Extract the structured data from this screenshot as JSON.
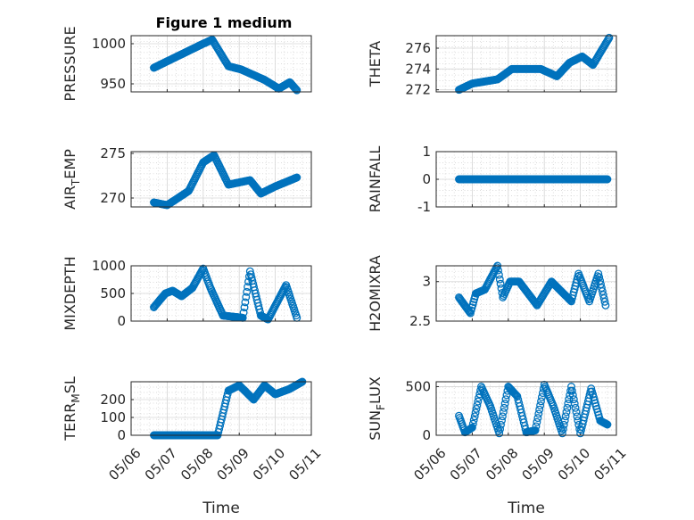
{
  "figure": {
    "title": "Figure 1 medium",
    "xlabel": "Time",
    "xticks": [
      "05/06",
      "05/07",
      "05/08",
      "05/09",
      "05/10",
      "05/11"
    ]
  },
  "chart_data": [
    {
      "type": "scatter",
      "ylabel": "PRESSURE",
      "xlim": [
        0,
        5
      ],
      "ylim": [
        940,
        1010
      ],
      "yticks": [
        "950",
        "1000"
      ],
      "ytick_values": [
        950,
        1000
      ],
      "x": [
        0.63,
        2.0,
        2.25,
        2.7,
        3.05,
        3.7,
        4.1,
        4.4,
        4.6
      ],
      "y": [
        970,
        1000,
        1005,
        972,
        968,
        955,
        944,
        952,
        942
      ]
    },
    {
      "type": "scatter",
      "ylabel": "THETA",
      "xlim": [
        0,
        5
      ],
      "ylim": [
        271.8,
        277.2
      ],
      "yticks": [
        "272",
        "274",
        "276"
      ],
      "ytick_values": [
        272,
        274,
        276
      ],
      "x": [
        0.63,
        1.0,
        1.7,
        2.1,
        2.9,
        3.35,
        3.7,
        4.05,
        4.35,
        4.8
      ],
      "y": [
        272.0,
        272.6,
        273.0,
        274.0,
        274.0,
        273.3,
        274.6,
        275.2,
        274.4,
        277.0
      ]
    },
    {
      "type": "scatter",
      "ylabel": "AIR_TEMP",
      "xlim": [
        0,
        5
      ],
      "ylim": [
        269.0,
        275.2
      ],
      "yticks": [
        "270",
        "275"
      ],
      "ytick_values": [
        270,
        275
      ],
      "x": [
        0.63,
        1.0,
        1.6,
        2.0,
        2.3,
        2.7,
        3.3,
        3.6,
        4.0,
        4.6
      ],
      "y": [
        269.5,
        269.2,
        270.8,
        274.0,
        274.8,
        271.5,
        272.0,
        270.5,
        271.3,
        272.3
      ]
    },
    {
      "type": "scatter",
      "ylabel": "RAINFALL",
      "xlim": [
        0,
        5
      ],
      "ylim": [
        -1,
        1
      ],
      "yticks": [
        "-1",
        "0",
        "1"
      ],
      "ytick_values": [
        -1,
        0,
        1
      ],
      "x": [
        0.63,
        4.75
      ],
      "y": [
        0,
        0
      ]
    },
    {
      "type": "scatter",
      "ylabel": "MIXDEPTH",
      "xlim": [
        0,
        5
      ],
      "ylim": [
        0,
        1000
      ],
      "yticks": [
        "0",
        "500",
        "1000"
      ],
      "ytick_values": [
        0,
        500,
        1000
      ],
      "x": [
        0.63,
        0.95,
        1.15,
        1.4,
        1.7,
        2.0,
        2.2,
        2.55,
        3.1,
        3.3,
        3.6,
        3.8,
        4.3,
        4.6
      ],
      "y": [
        250,
        500,
        550,
        450,
        600,
        950,
        600,
        100,
        60,
        900,
        100,
        30,
        650,
        60
      ]
    },
    {
      "type": "scatter",
      "ylabel": "H2OMIXRA",
      "xlim": [
        0,
        5
      ],
      "ylim": [
        2.5,
        3.2
      ],
      "yticks": [
        "2.5",
        "3"
      ],
      "ytick_values": [
        2.5,
        3.0
      ],
      "x": [
        0.63,
        0.95,
        1.1,
        1.35,
        1.7,
        1.85,
        2.05,
        2.3,
        2.8,
        3.2,
        3.75,
        3.95,
        4.25,
        4.5,
        4.7
      ],
      "y": [
        2.8,
        2.6,
        2.85,
        2.9,
        3.2,
        2.8,
        3.0,
        3.0,
        2.7,
        3.0,
        2.75,
        3.1,
        2.75,
        3.1,
        2.7
      ]
    },
    {
      "type": "scatter",
      "ylabel": "TERR_MSL",
      "xlim": [
        0,
        5
      ],
      "ylim": [
        0,
        300
      ],
      "yticks": [
        "0",
        "100",
        "200"
      ],
      "ytick_values": [
        0,
        100,
        200
      ],
      "x": [
        0.63,
        2.4,
        2.7,
        3.0,
        3.4,
        3.7,
        4.0,
        4.4,
        4.75
      ],
      "y": [
        0,
        0,
        250,
        280,
        200,
        280,
        230,
        260,
        300
      ]
    },
    {
      "type": "scatter",
      "ylabel": "SUN_FLUX",
      "xlim": [
        0,
        5
      ],
      "ylim": [
        0,
        550
      ],
      "yticks": [
        "0",
        "500"
      ],
      "ytick_values": [
        0,
        500
      ],
      "x": [
        0.63,
        0.8,
        1.0,
        1.25,
        1.5,
        1.75,
        2.0,
        2.25,
        2.5,
        2.75,
        3.0,
        3.25,
        3.5,
        3.75,
        4.0,
        4.3,
        4.55,
        4.75
      ],
      "y": [
        200,
        30,
        80,
        500,
        300,
        20,
        500,
        400,
        30,
        50,
        520,
        300,
        20,
        500,
        20,
        480,
        150,
        110
      ]
    }
  ]
}
